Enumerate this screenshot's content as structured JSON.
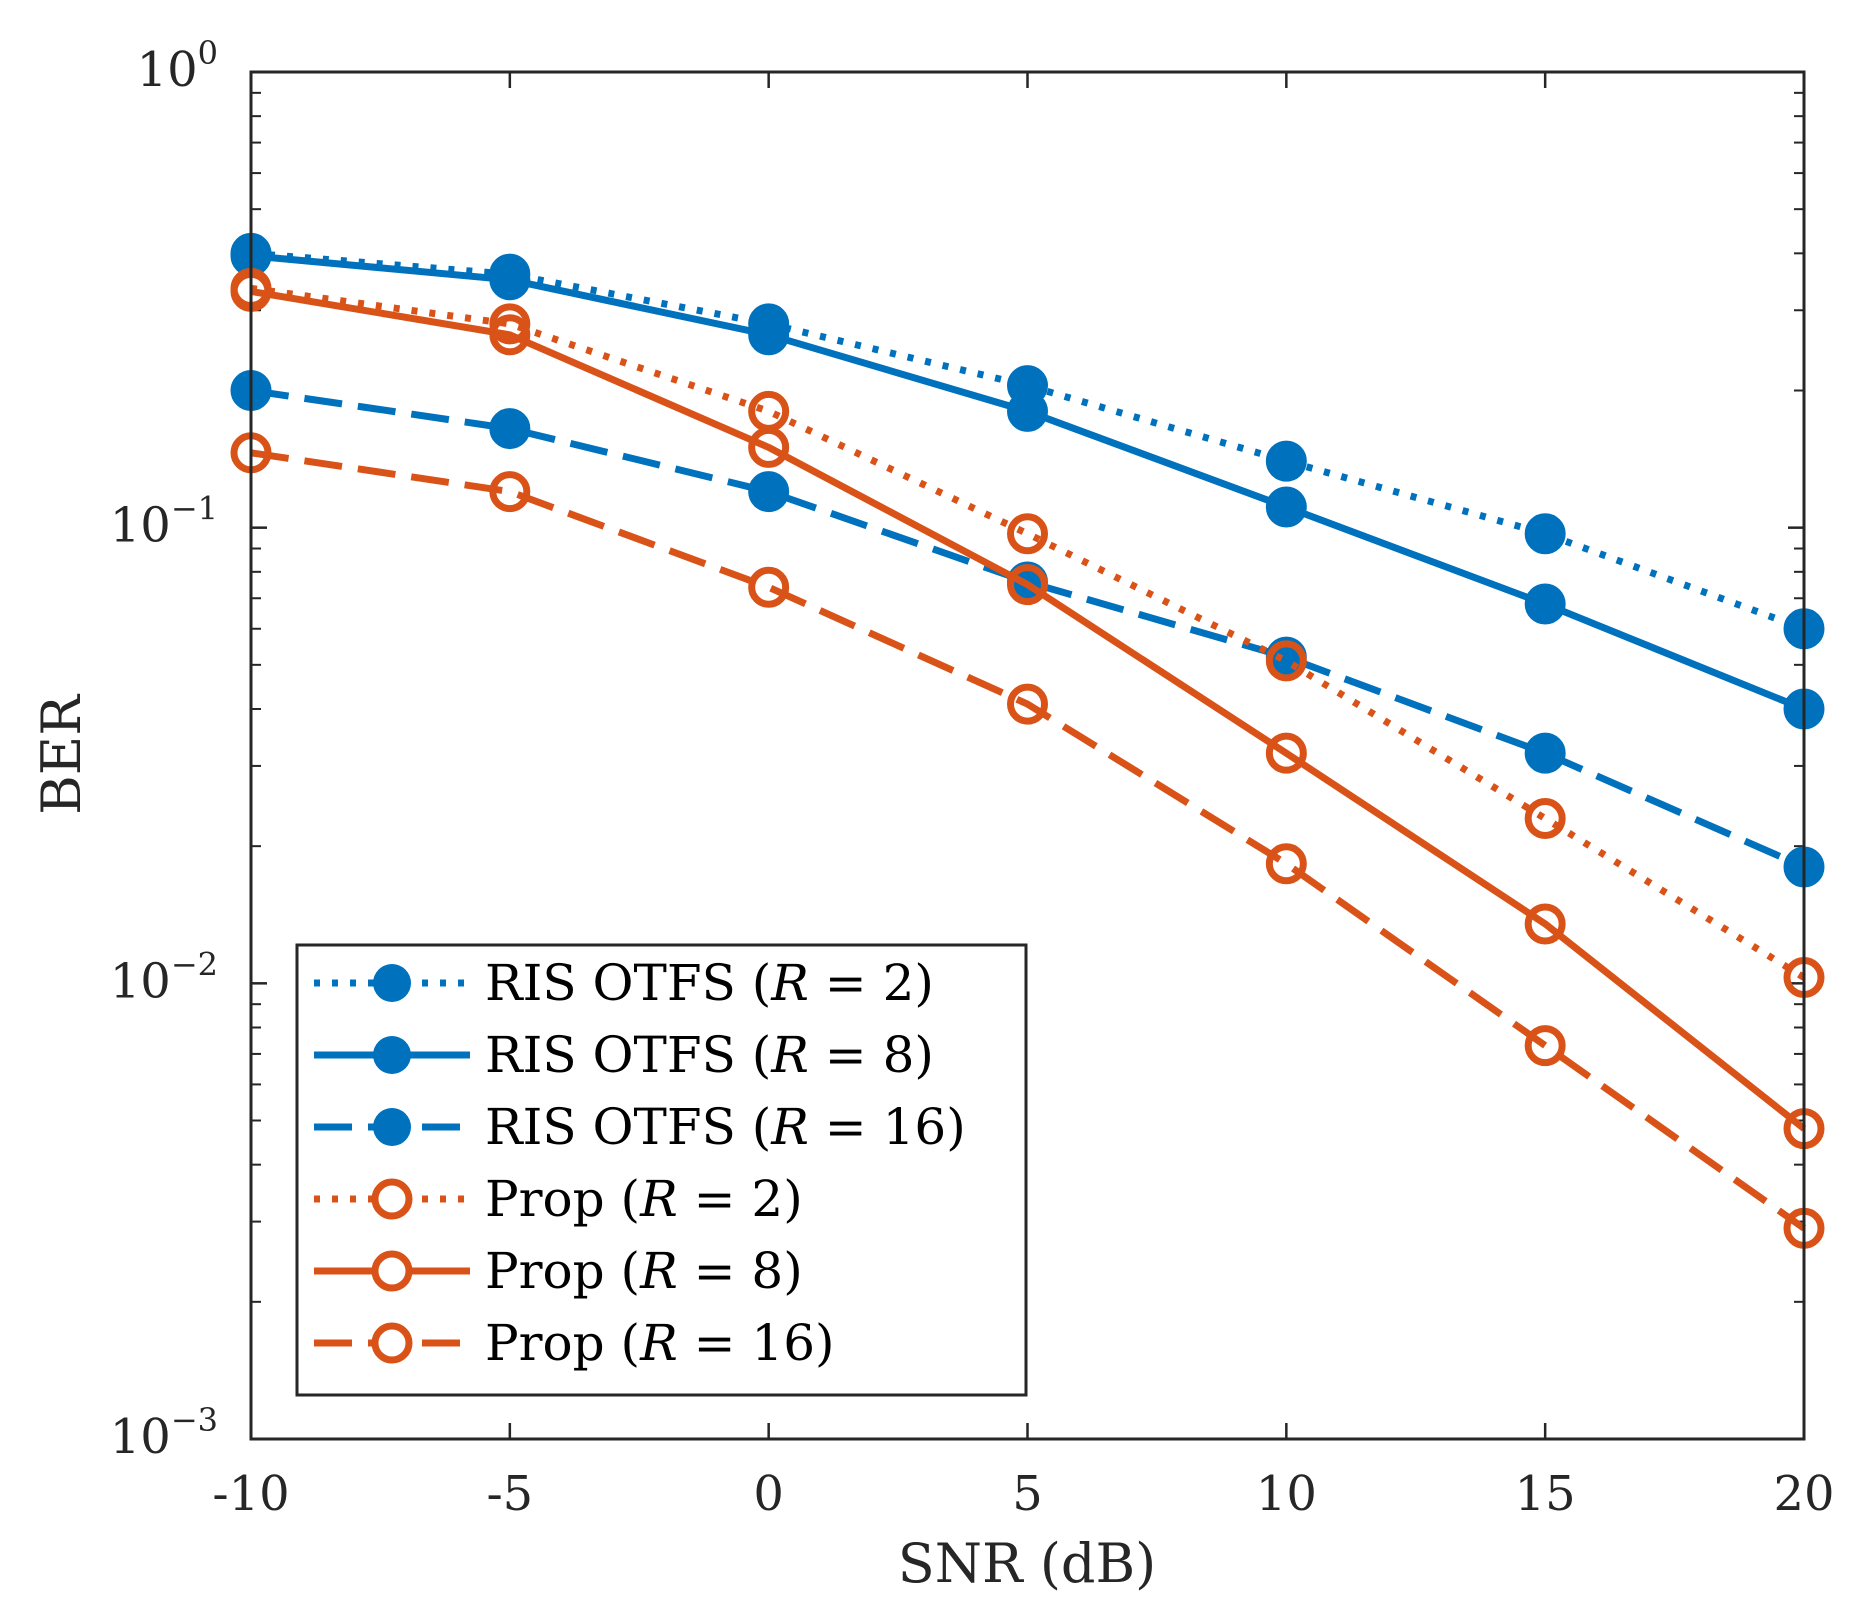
{
  "chart_data": {
    "type": "line",
    "title": "",
    "xlabel": "SNR (dB)",
    "ylabel": "BER",
    "xscale": "linear",
    "yscale": "log",
    "xlim": [
      -10,
      20
    ],
    "ylim": [
      0.001,
      1
    ],
    "grid": false,
    "legend_position": "bottom-left",
    "x": [
      -10,
      -5,
      0,
      5,
      10,
      15,
      20
    ],
    "x_tick_labels": [
      "-10",
      "-5",
      "0",
      "5",
      "10",
      "15",
      "20"
    ],
    "y_ticks": [
      {
        "value": 1,
        "base": "10",
        "exp": "0"
      },
      {
        "value": 0.1,
        "base": "10",
        "exp": "−1"
      },
      {
        "value": 0.01,
        "base": "10",
        "exp": "−2"
      },
      {
        "value": 0.001,
        "base": "10",
        "exp": "−3"
      }
    ],
    "series": [
      {
        "name": "RIS OTFS (R = 2)",
        "legend": {
          "prefix": "RIS OTFS (",
          "var": "R",
          "suffix": " = 2)"
        },
        "color": "#0072BD",
        "style": "dotted",
        "marker": "filled-circle",
        "values": [
          0.4,
          0.36,
          0.28,
          0.205,
          0.14,
          0.097,
          0.06
        ]
      },
      {
        "name": "RIS OTFS (R = 8)",
        "legend": {
          "prefix": "RIS OTFS (",
          "var": "R",
          "suffix": " = 8)"
        },
        "color": "#0072BD",
        "style": "solid",
        "marker": "filled-circle",
        "values": [
          0.395,
          0.35,
          0.265,
          0.18,
          0.111,
          0.068,
          0.04
        ]
      },
      {
        "name": "RIS OTFS (R = 16)",
        "legend": {
          "prefix": "RIS OTFS (",
          "var": "R",
          "suffix": " = 16)"
        },
        "color": "#0072BD",
        "style": "dashed",
        "marker": "filled-circle",
        "values": [
          0.2,
          0.165,
          0.12,
          0.076,
          0.052,
          0.032,
          0.018
        ]
      },
      {
        "name": "Prop (R = 2)",
        "legend": {
          "prefix": "Prop (",
          "var": "R",
          "suffix": " = 2)"
        },
        "color": "#D95319",
        "style": "dotted",
        "marker": "open-circle",
        "values": [
          0.335,
          0.28,
          0.18,
          0.097,
          0.051,
          0.023,
          0.0103
        ]
      },
      {
        "name": "Prop (R = 8)",
        "legend": {
          "prefix": "Prop (",
          "var": "R",
          "suffix": " = 8)"
        },
        "color": "#D95319",
        "style": "solid",
        "marker": "open-circle",
        "values": [
          0.33,
          0.265,
          0.15,
          0.075,
          0.032,
          0.0135,
          0.0048
        ]
      },
      {
        "name": "Prop (R = 16)",
        "legend": {
          "prefix": "Prop (",
          "var": "R",
          "suffix": " = 16)"
        },
        "color": "#D95319",
        "style": "dashed",
        "marker": "open-circle",
        "values": [
          0.146,
          0.12,
          0.074,
          0.041,
          0.0183,
          0.0073,
          0.0029
        ]
      }
    ]
  }
}
